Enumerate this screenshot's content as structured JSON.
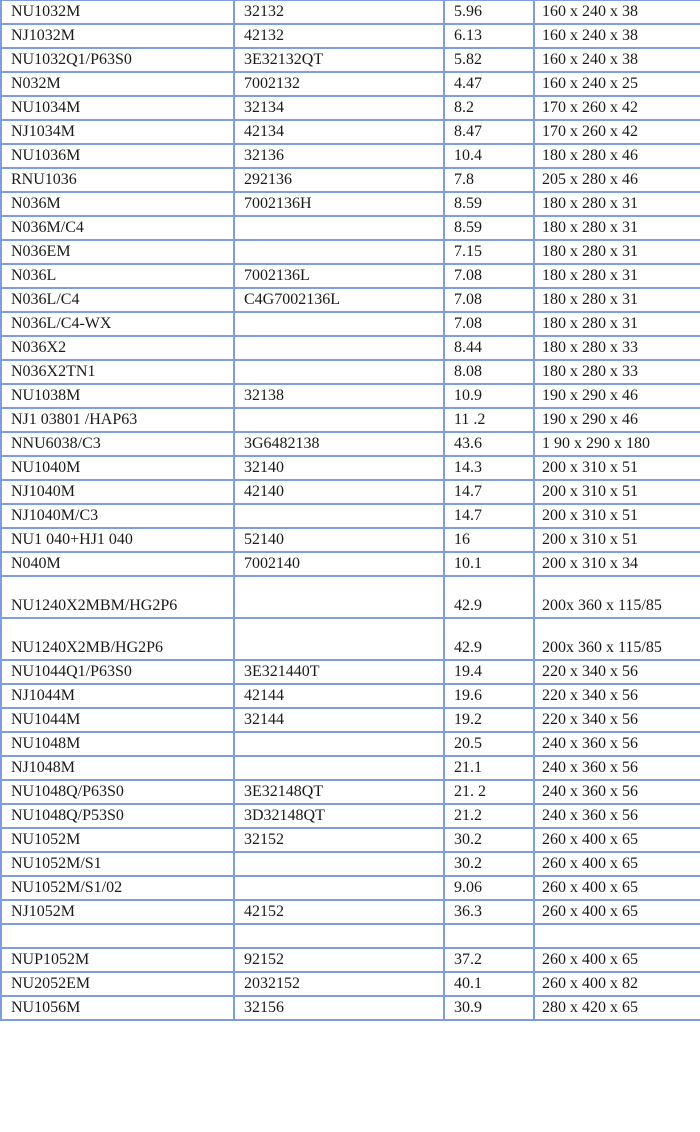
{
  "table": {
    "rows": [
      [
        "NU1032M",
        "32132",
        "5.96",
        "160 x 240 x 38"
      ],
      [
        "NJ1032M",
        "42132",
        "6.13",
        "160 x 240 x 38"
      ],
      [
        "NU1032Q1/P63S0",
        "3E32132QT",
        "5.82",
        "160 x 240 x 38"
      ],
      [
        "N032M",
        "7002132",
        "4.47",
        "160 x 240 x 25"
      ],
      [
        "NU1034M",
        "32134",
        "8.2",
        "170 x 260 x 42"
      ],
      [
        "NJ1034M",
        "42134",
        "8.47",
        "170 x 260 x 42"
      ],
      [
        "NU1036M",
        "32136",
        "10.4",
        "180 x 280 x 46"
      ],
      [
        "RNU1036",
        "292136",
        "7.8",
        "205 x 280 x 46"
      ],
      [
        "N036M",
        "7002136H",
        "8.59",
        "180 x 280 x 31"
      ],
      [
        "N036M/C4",
        "",
        "8.59",
        "180 x 280 x 31"
      ],
      [
        "N036EM",
        "",
        "7.15",
        "180 x 280 x 31"
      ],
      [
        "N036L",
        "7002136L",
        "7.08",
        "180 x 280 x 31"
      ],
      [
        "N036L/C4",
        "C4G7002136L",
        "7.08",
        "180 x 280 x 31"
      ],
      [
        "N036L/C4-WX",
        "",
        "7.08",
        "180 x 280 x 31"
      ],
      [
        "N036X2",
        "",
        "8.44",
        "180 x 280 x 33"
      ],
      [
        "N036X2TN1",
        "",
        "8.08",
        "180 x 280 x 33"
      ],
      [
        "NU1038M",
        "32138",
        "10.9",
        "190 x 290 x 46"
      ],
      [
        "NJ1 03801 /HAP63",
        "",
        "11 .2",
        "190 x 290 x 46"
      ],
      [
        "NNU6038/C3",
        "3G6482138",
        "43.6",
        "1 90 x 290 x 180"
      ],
      [
        "NU1040M",
        "32140",
        "14.3",
        "200 x 310 x 51"
      ],
      [
        "NJ1040M",
        "42140",
        "14.7",
        "200 x 310 x 51"
      ],
      [
        "NJ1040M/C3",
        "",
        "14.7",
        "200 x 310 x 51"
      ],
      [
        "NU1 040+HJ1 040",
        "52140",
        "16",
        "200 x 310 x 51"
      ],
      [
        "N040M",
        "7002140",
        "10.1",
        "200 x 310 x 34"
      ],
      [
        "NU1240X2MBM/HG2P6",
        "",
        "42.9",
        "200x 360 x 115/85"
      ],
      [
        "NU1240X2MB/HG2P6",
        "",
        "42.9",
        "200x 360 x 115/85"
      ],
      [
        "NU1044Q1/P63S0",
        "3E321440T",
        "19.4",
        "220 x 340 x 56"
      ],
      [
        "NJ1044M",
        "42144",
        "19.6",
        "220 x 340 x 56"
      ],
      [
        "NU1044M",
        "32144",
        "19.2",
        "220 x 340 x 56"
      ],
      [
        "NU1048M",
        "",
        "20.5",
        "240 x 360 x 56"
      ],
      [
        "NJ1048M",
        "",
        "21.1",
        "240 x 360 x 56"
      ],
      [
        "NU1048Q/P63S0",
        "3E32148QT",
        "21. 2",
        "240 x 360 x 56"
      ],
      [
        "NU1048Q/P53S0",
        "3D32148QT",
        "21.2",
        "240 x 360 x 56"
      ],
      [
        "NU1052M",
        "32152",
        "30.2",
        "260 x 400 x 65"
      ],
      [
        "NU1052M/S1",
        "",
        "30.2",
        "260 x 400 x 65"
      ],
      [
        "NU1052M/S1/02",
        "",
        "9.06",
        "260 x 400 x 65"
      ],
      [
        "NJ1052M",
        "42152",
        "36.3",
        "260 x 400 x 65"
      ],
      [
        "",
        "",
        "",
        ""
      ],
      [
        "NUP1052M",
        "92152",
        "37.2",
        "260 x 400 x 65"
      ],
      [
        "NU2052EM",
        "2032152",
        "40.1",
        "260 x 400 x 82"
      ],
      [
        "NU1056M",
        "32156",
        "30.9",
        "280 x 420 x 65"
      ]
    ]
  }
}
